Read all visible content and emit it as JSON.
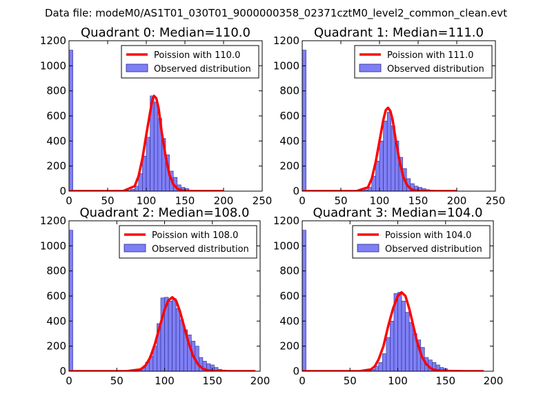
{
  "figure": {
    "suptitle": "Data file: modeM0/AS1T01_030T01_9000000358_02371cztM0_level2_common_clean.evt"
  },
  "colors": {
    "histogram_fill": "#7f7ff5",
    "histogram_edge": "#2a2a8a",
    "poisson_line": "#ff0000",
    "axes": "#000000"
  },
  "chart_data": [
    {
      "type": "bar",
      "title": "Quadrant 0: Median=110.0",
      "xlim": [
        0,
        250
      ],
      "ylim": [
        0,
        1200
      ],
      "xticks": [
        0,
        50,
        100,
        150,
        200,
        250
      ],
      "yticks": [
        0,
        200,
        400,
        600,
        800,
        1000,
        1200
      ],
      "bin_width": 5,
      "legend_position": "upper right",
      "series": [
        {
          "name": "Poission with 110.0",
          "kind": "line",
          "x": [
            0,
            70,
            85,
            90,
            95,
            100,
            105,
            108,
            110,
            113,
            116,
            120,
            125,
            130,
            135,
            140,
            145,
            150,
            160,
            180,
            200
          ],
          "y": [
            0,
            0,
            40,
            120,
            260,
            450,
            630,
            735,
            760,
            740,
            660,
            470,
            280,
            130,
            55,
            20,
            8,
            2,
            0,
            0,
            0
          ]
        },
        {
          "name": "Observed distribution",
          "kind": "bar",
          "x": [
            0,
            75,
            80,
            85,
            90,
            95,
            100,
            105,
            110,
            115,
            120,
            125,
            130,
            135,
            140,
            145,
            150,
            155,
            160,
            165,
            170,
            175,
            180,
            185,
            190,
            195
          ],
          "y": [
            1125,
            5,
            15,
            40,
            140,
            280,
            430,
            760,
            710,
            580,
            420,
            290,
            160,
            110,
            50,
            30,
            20,
            8,
            5,
            3,
            2,
            1,
            1,
            1,
            1,
            1
          ]
        }
      ]
    },
    {
      "type": "bar",
      "title": "Quadrant 1: Median=111.0",
      "xlim": [
        0,
        250
      ],
      "ylim": [
        0,
        1200
      ],
      "xticks": [
        0,
        50,
        100,
        150,
        200,
        250
      ],
      "yticks": [
        0,
        200,
        400,
        600,
        800,
        1000,
        1200
      ],
      "bin_width": 5,
      "legend_position": "upper right",
      "series": [
        {
          "name": "Poission with 111.0",
          "kind": "line",
          "x": [
            0,
            70,
            85,
            90,
            95,
            100,
            105,
            108,
            111,
            114,
            117,
            121,
            126,
            131,
            136,
            141,
            146,
            151,
            160,
            180,
            200
          ],
          "y": [
            0,
            0,
            30,
            100,
            230,
            400,
            570,
            645,
            665,
            640,
            570,
            410,
            240,
            110,
            45,
            15,
            6,
            2,
            0,
            0,
            0
          ]
        },
        {
          "name": "Observed distribution",
          "kind": "bar",
          "x": [
            0,
            75,
            80,
            85,
            90,
            95,
            100,
            105,
            110,
            115,
            120,
            125,
            130,
            135,
            140,
            145,
            150,
            155,
            160,
            165,
            170,
            175,
            180,
            185,
            190,
            195
          ],
          "y": [
            1125,
            3,
            10,
            30,
            120,
            240,
            400,
            560,
            630,
            520,
            400,
            270,
            180,
            100,
            60,
            40,
            30,
            20,
            12,
            8,
            5,
            3,
            2,
            1,
            1,
            1
          ]
        }
      ]
    },
    {
      "type": "bar",
      "title": "Quadrant 2: Median=108.0",
      "xlim": [
        0,
        200
      ],
      "ylim": [
        0,
        1200
      ],
      "xticks": [
        0,
        50,
        100,
        150,
        200
      ],
      "yticks": [
        0,
        200,
        400,
        600,
        800,
        1000,
        1200
      ],
      "bin_width": 4,
      "legend_position": "upper right",
      "series": [
        {
          "name": "Poission with 108.0",
          "kind": "line",
          "x": [
            0,
            60,
            75,
            80,
            85,
            90,
            95,
            100,
            104,
            108,
            112,
            116,
            120,
            125,
            130,
            135,
            140,
            145,
            150,
            170,
            195
          ],
          "y": [
            0,
            0,
            15,
            45,
            110,
            220,
            360,
            490,
            565,
            590,
            565,
            480,
            370,
            230,
            120,
            55,
            20,
            8,
            2,
            0,
            0
          ]
        },
        {
          "name": "Observed distribution",
          "kind": "bar",
          "x": [
            0,
            68,
            72,
            76,
            80,
            84,
            88,
            92,
            96,
            100,
            104,
            108,
            112,
            116,
            120,
            124,
            128,
            132,
            136,
            140,
            144,
            148,
            152,
            156,
            160,
            164,
            168,
            172,
            176
          ],
          "y": [
            1125,
            5,
            10,
            30,
            70,
            120,
            200,
            380,
            585,
            590,
            560,
            580,
            500,
            410,
            330,
            290,
            240,
            200,
            110,
            80,
            60,
            50,
            30,
            15,
            10,
            5,
            3,
            2,
            1
          ]
        }
      ]
    },
    {
      "type": "bar",
      "title": "Quadrant 3: Median=104.0",
      "xlim": [
        0,
        200
      ],
      "ylim": [
        0,
        1200
      ],
      "xticks": [
        0,
        50,
        100,
        150,
        200
      ],
      "yticks": [
        0,
        200,
        400,
        600,
        800,
        1000,
        1200
      ],
      "bin_width": 4,
      "legend_position": "upper right",
      "series": [
        {
          "name": "Poission with 104.0",
          "kind": "line",
          "x": [
            0,
            60,
            72,
            76,
            80,
            85,
            90,
            95,
            100,
            104,
            108,
            112,
            116,
            120,
            125,
            130,
            135,
            140,
            150,
            170,
            190
          ],
          "y": [
            0,
            0,
            15,
            40,
            95,
            200,
            360,
            500,
            600,
            630,
            600,
            500,
            370,
            240,
            120,
            55,
            20,
            8,
            2,
            0,
            0
          ]
        },
        {
          "name": "Observed distribution",
          "kind": "bar",
          "x": [
            0,
            68,
            72,
            76,
            80,
            84,
            88,
            92,
            96,
            100,
            104,
            108,
            112,
            116,
            120,
            124,
            128,
            132,
            136,
            140,
            144,
            148,
            152,
            156,
            160,
            164
          ],
          "y": [
            1125,
            5,
            15,
            40,
            70,
            140,
            270,
            400,
            620,
            630,
            560,
            470,
            390,
            300,
            250,
            190,
            110,
            90,
            70,
            50,
            30,
            20,
            10,
            5,
            3,
            1
          ]
        }
      ]
    }
  ]
}
